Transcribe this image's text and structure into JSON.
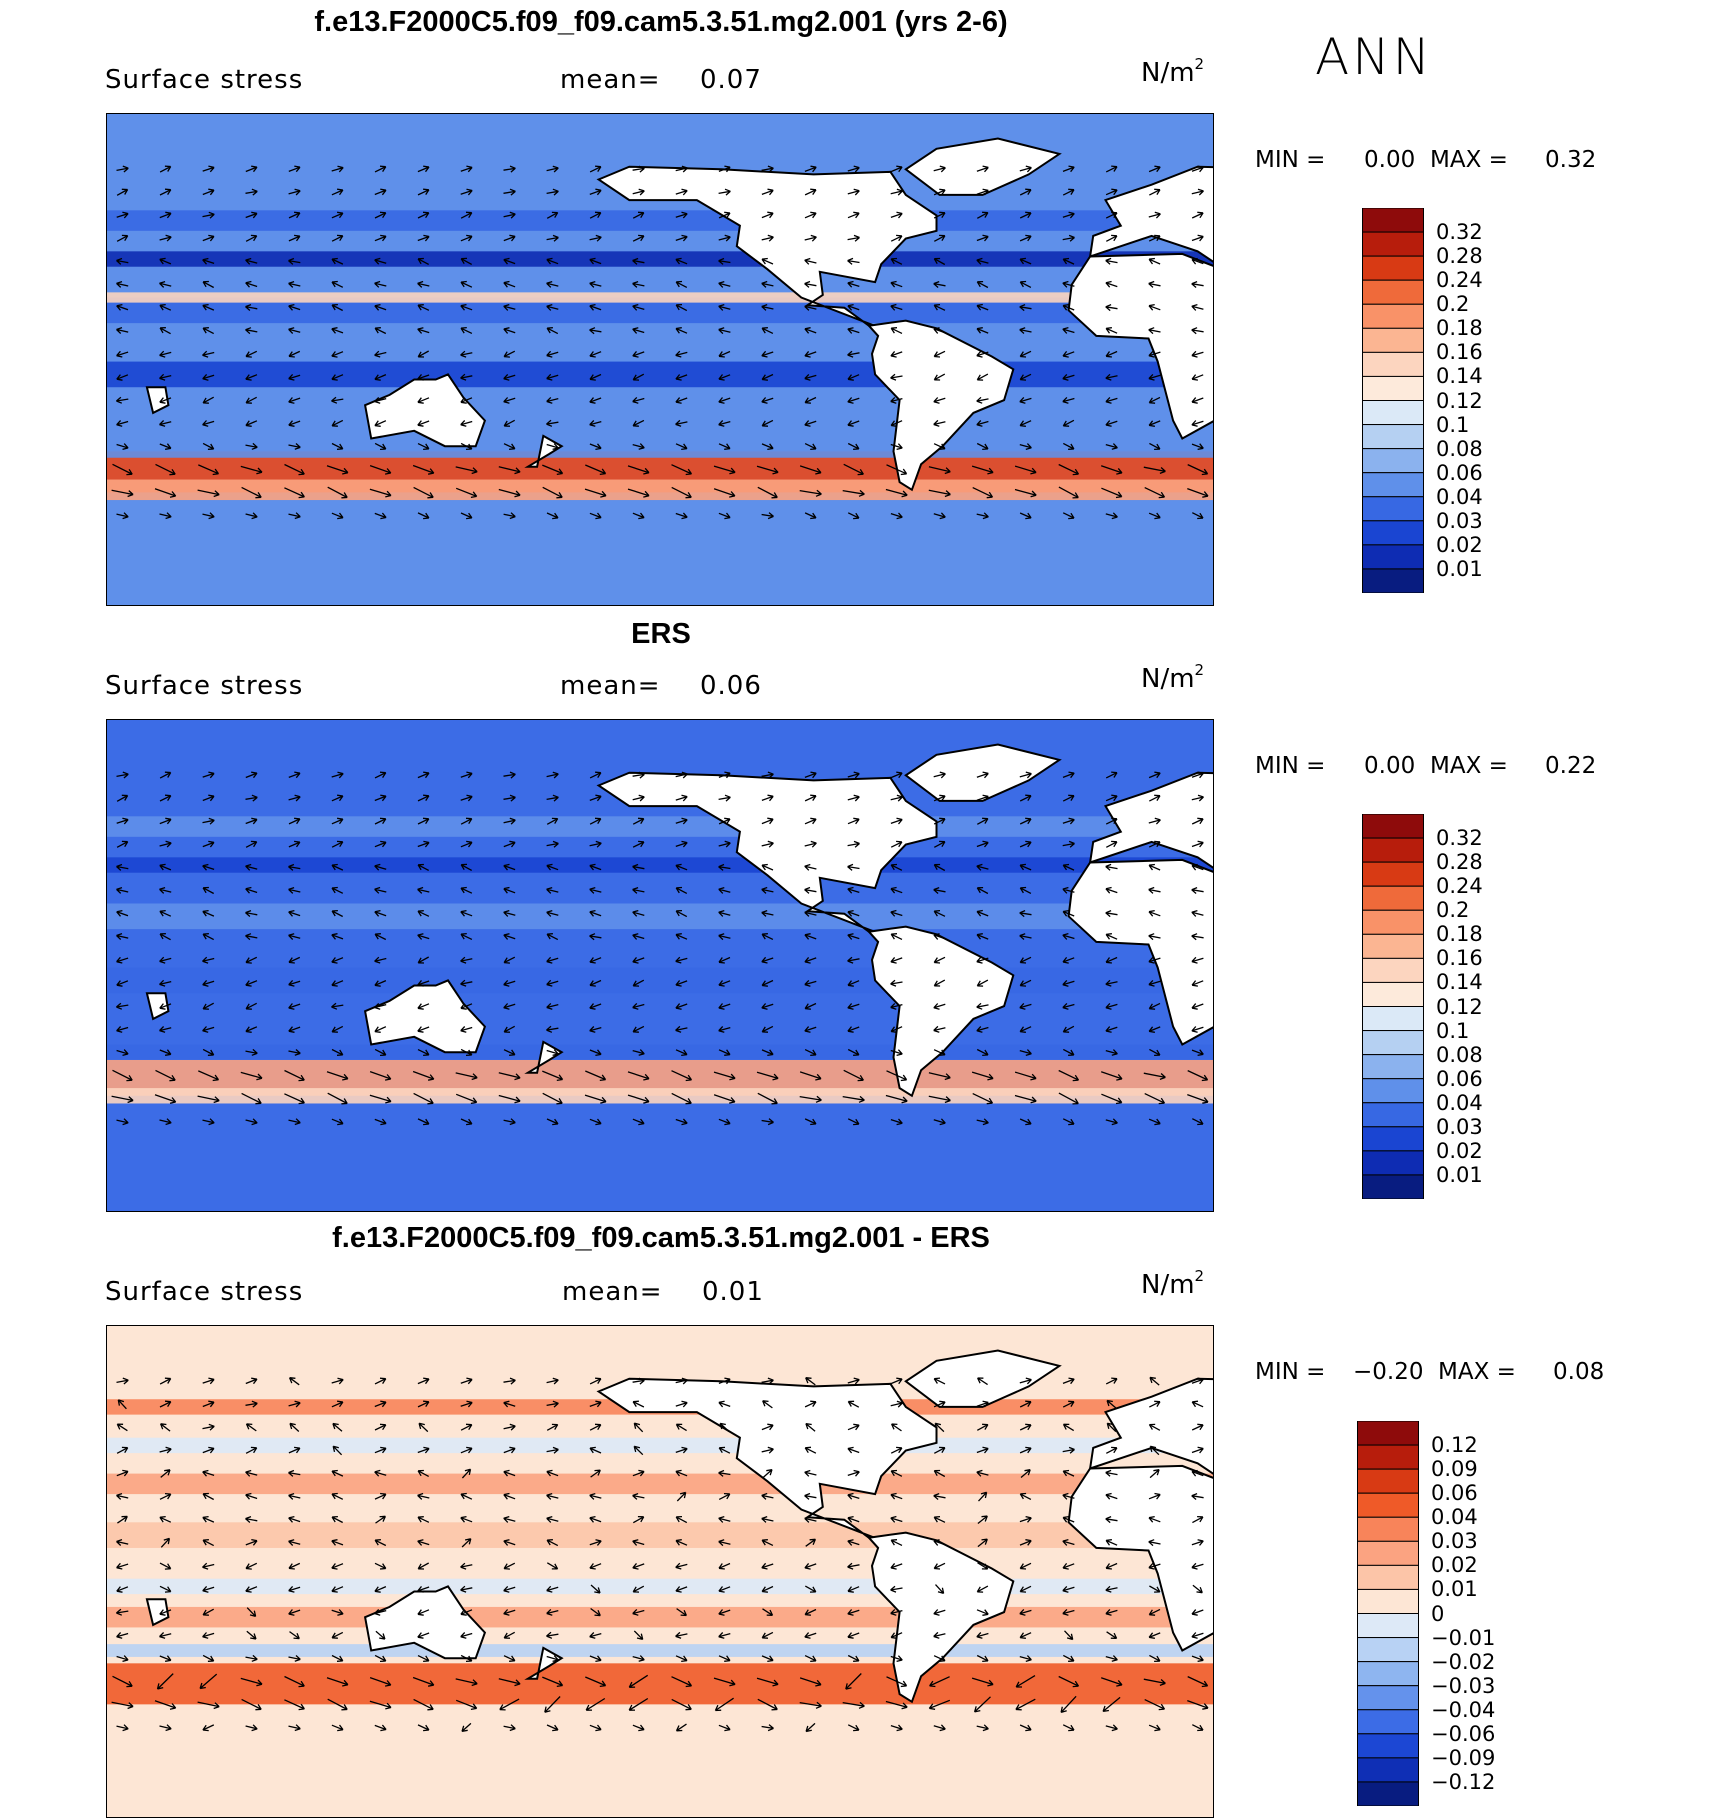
{
  "season": "ANN",
  "panels": [
    {
      "title": "f.e13.F2000C5.f09_f09.cam5.3.51.mg2.001 (yrs 2-6)",
      "variable": "Surface stress",
      "mean_label": "mean=",
      "mean_value": "0.07",
      "unit": "N/m",
      "unit_exp": "2",
      "min_label": "MIN =",
      "min_value": "0.00",
      "max_label": "MAX =",
      "max_value": "0.32",
      "colorbar": {
        "labels": [
          "0.32",
          "0.28",
          "0.24",
          "0.2",
          "0.18",
          "0.16",
          "0.14",
          "0.12",
          "0.1",
          "0.08",
          "0.06",
          "0.04",
          "0.03",
          "0.02",
          "0.01"
        ],
        "colors": [
          "#8e0b0b",
          "#b71d0c",
          "#d83a14",
          "#ef6a3a",
          "#f99268",
          "#fbb592",
          "#fcd5bf",
          "#fdeadb",
          "#dbe9f7",
          "#b5d0f2",
          "#8bb2ee",
          "#5f90ea",
          "#3768e3",
          "#1a45d2",
          "#0e2cb3",
          "#081c80"
        ]
      },
      "style": "full"
    },
    {
      "title": "ERS",
      "variable": "Surface stress",
      "mean_label": "mean=",
      "mean_value": "0.06",
      "unit": "N/m",
      "unit_exp": "2",
      "min_label": "MIN =",
      "min_value": "0.00",
      "max_label": "MAX =",
      "max_value": "0.22",
      "colorbar": {
        "labels": [
          "0.32",
          "0.28",
          "0.24",
          "0.2",
          "0.18",
          "0.16",
          "0.14",
          "0.12",
          "0.1",
          "0.08",
          "0.06",
          "0.04",
          "0.03",
          "0.02",
          "0.01"
        ],
        "colors": [
          "#8e0b0b",
          "#b71d0c",
          "#d83a14",
          "#ef6a3a",
          "#f99268",
          "#fbb592",
          "#fcd5bf",
          "#fdeadb",
          "#dbe9f7",
          "#b5d0f2",
          "#8bb2ee",
          "#5f90ea",
          "#3768e3",
          "#1a45d2",
          "#0e2cb3",
          "#081c80"
        ]
      },
      "style": "obs"
    },
    {
      "title": "f.e13.F2000C5.f09_f09.cam5.3.51.mg2.001 - ERS",
      "variable": "Surface stress",
      "mean_label": "mean=",
      "mean_value": "0.01",
      "unit": "N/m",
      "unit_exp": "2",
      "min_label": "MIN =",
      "min_value": "−0.20",
      "max_label": "MAX =",
      "max_value": "0.08",
      "colorbar": {
        "labels": [
          "0.12",
          "0.09",
          "0.06",
          "0.04",
          "0.03",
          "0.02",
          "0.01",
          "0",
          "−0.01",
          "−0.02",
          "−0.03",
          "−0.04",
          "−0.06",
          "−0.09",
          "−0.12"
        ],
        "colors": [
          "#8e0b0b",
          "#b71d0c",
          "#d83a14",
          "#ef5a28",
          "#f8845a",
          "#fba381",
          "#fcc5a8",
          "#fde6d5",
          "#dde9f7",
          "#b8d2f4",
          "#8eb5f0",
          "#6492ec",
          "#3c6ce6",
          "#1c47d4",
          "#0f2fb5",
          "#081c80"
        ]
      },
      "style": "diff"
    }
  ]
}
